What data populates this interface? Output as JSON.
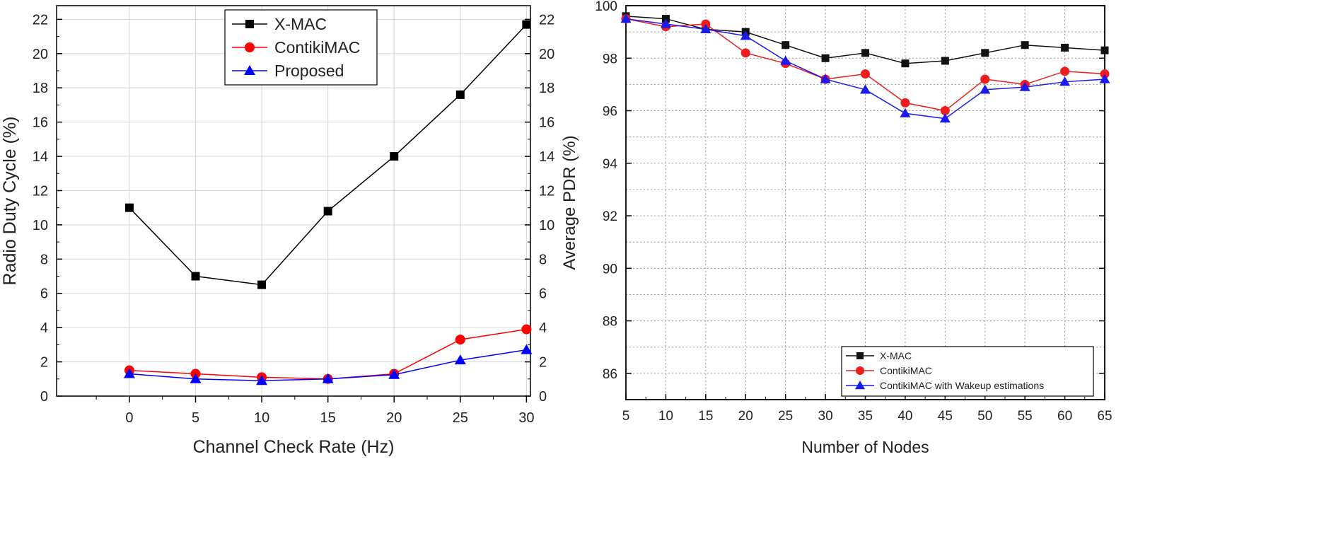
{
  "chart_data": [
    {
      "type": "line",
      "title": "",
      "xlabel": "Channel Check Rate (Hz)",
      "ylabel": "Radio Duty Cycle (%)",
      "x": [
        0,
        5,
        10,
        15,
        20,
        25,
        30
      ],
      "xticks": [
        0,
        5,
        10,
        15,
        20,
        25,
        30
      ],
      "yticks": [
        0,
        2,
        4,
        6,
        8,
        10,
        12,
        14,
        16,
        18,
        20,
        22
      ],
      "xlim": [
        -5.5,
        30.3
      ],
      "ylim": [
        0,
        22.8
      ],
      "right_axis_mirrored": true,
      "grid": true,
      "legend": "top-center",
      "series": [
        {
          "name": "X-MAC",
          "color": "#000000",
          "marker": "square",
          "values": [
            11.0,
            7.0,
            6.5,
            10.8,
            14.0,
            17.6,
            21.7
          ]
        },
        {
          "name": "ContikiMAC",
          "color": "#ff0000",
          "marker": "circle",
          "values": [
            1.5,
            1.3,
            1.1,
            1.0,
            1.3,
            3.3,
            3.9
          ]
        },
        {
          "name": "Proposed",
          "color": "#0000ff",
          "marker": "triangle",
          "values": [
            1.3,
            1.0,
            0.9,
            1.0,
            1.25,
            2.1,
            2.7
          ]
        }
      ]
    },
    {
      "type": "line",
      "title": "",
      "xlabel": "Number of Nodes",
      "ylabel": "Average PDR (%)",
      "x": [
        5,
        10,
        15,
        20,
        25,
        30,
        35,
        40,
        45,
        50,
        55,
        60,
        65
      ],
      "xticks": [
        5,
        10,
        15,
        20,
        25,
        30,
        35,
        40,
        45,
        50,
        55,
        60,
        65
      ],
      "yticks": [
        86,
        88,
        90,
        92,
        94,
        96,
        98,
        100
      ],
      "xlim": [
        5,
        65
      ],
      "ylim": [
        85,
        100
      ],
      "grid": true,
      "legend": "bottom-right",
      "series": [
        {
          "name": "X-MAC",
          "color": "#111111",
          "marker": "square",
          "values": [
            99.6,
            99.5,
            99.1,
            99.0,
            98.5,
            98.0,
            98.2,
            97.8,
            97.9,
            98.2,
            98.5,
            98.4,
            98.3
          ]
        },
        {
          "name": "ContikiMAC",
          "color": "#ee1c1c",
          "marker": "circle",
          "values": [
            99.5,
            99.2,
            99.3,
            98.2,
            97.8,
            97.2,
            97.4,
            96.3,
            96.0,
            97.2,
            97.0,
            97.5,
            97.4
          ]
        },
        {
          "name": "ContikiMAC with Wakeup estimations",
          "color": "#1a1aee",
          "marker": "triangle",
          "values": [
            99.5,
            99.3,
            99.1,
            98.85,
            97.9,
            97.2,
            96.8,
            95.9,
            95.7,
            96.8,
            96.9,
            97.1,
            97.2
          ]
        }
      ]
    }
  ]
}
